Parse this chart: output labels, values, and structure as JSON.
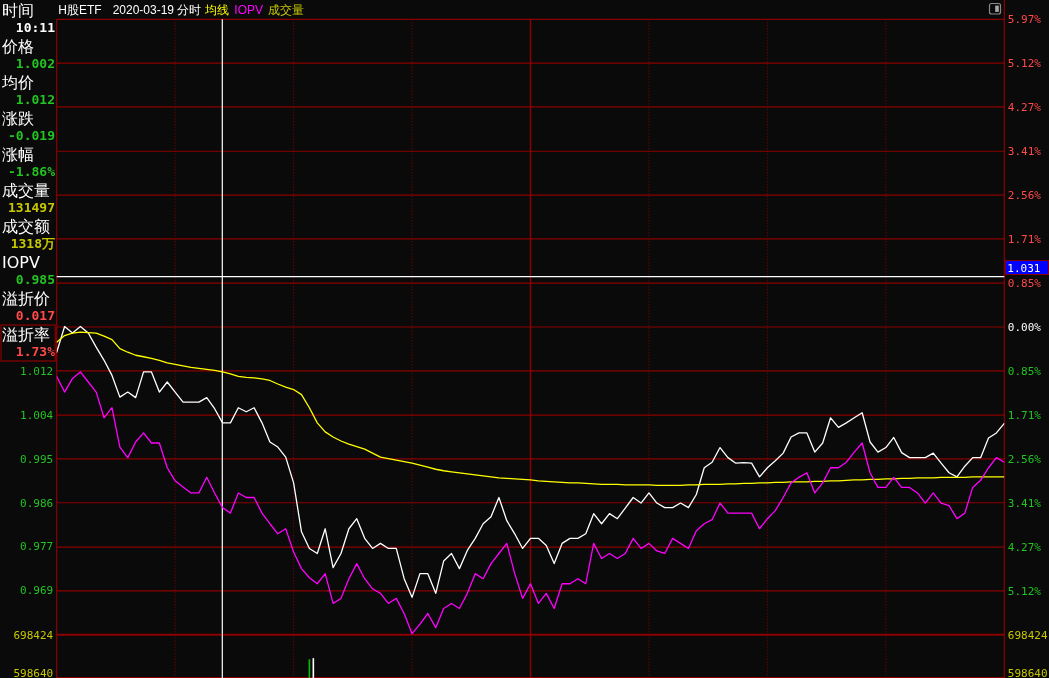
{
  "chart_data": [
    {
      "type": "line",
      "title": "H股ETF",
      "subtitle": "2020-03-19 分时",
      "grid": true,
      "tick_labels": "y",
      "categories": [
        null,
        null,
        null,
        null,
        null,
        null,
        null,
        null,
        null,
        null,
        null,
        null,
        null,
        null,
        null,
        null,
        null,
        null,
        null,
        null,
        null,
        null,
        null,
        null,
        null,
        null,
        null,
        null,
        null,
        null,
        null,
        null,
        null,
        null,
        null,
        null,
        null,
        null,
        null,
        null,
        null,
        null,
        null,
        null,
        null,
        null,
        null,
        null,
        null,
        null,
        null,
        null,
        null,
        null,
        null,
        null,
        null,
        null,
        null,
        null,
        null,
        null,
        null,
        null,
        null,
        null,
        null,
        null,
        null,
        null,
        null,
        null,
        null,
        null,
        null,
        null,
        null,
        null,
        null,
        null,
        null,
        null,
        null,
        null,
        null,
        null,
        null,
        null,
        null,
        null,
        null,
        null,
        null,
        null,
        null,
        null,
        null,
        null,
        null,
        null,
        null,
        null,
        null,
        null,
        null,
        null,
        null,
        null,
        null,
        null,
        null,
        null,
        null,
        null,
        null,
        null,
        null,
        null,
        null,
        null,
        null
      ],
      "ylim": [
        0.96,
        1.082
      ],
      "yticks": [
        {
          "value": 1.0123,
          "label": "1.012"
        },
        {
          "value": 1.0036,
          "label": "1.004"
        },
        {
          "value": 0.9949,
          "label": "0.995"
        },
        {
          "value": 0.9862,
          "label": "0.986"
        },
        {
          "value": 0.9775,
          "label": "0.977"
        },
        {
          "value": 0.9688,
          "label": "0.969"
        }
      ],
      "y2lim": [
        -5.97,
        5.97
      ],
      "y2ticks": [
        {
          "value": 5.97,
          "label": "5.97%"
        },
        {
          "value": 5.12,
          "label": "5.12%"
        },
        {
          "value": 4.27,
          "label": "4.27%"
        },
        {
          "value": 3.41,
          "label": "3.41%"
        },
        {
          "value": 2.56,
          "label": "2.56%"
        },
        {
          "value": 1.71,
          "label": "1.71%"
        },
        {
          "value": 0.85,
          "label": "0.85%"
        },
        {
          "value": 0,
          "label": "0.00%"
        },
        {
          "value": -0.85,
          "label": "0.85%"
        },
        {
          "value": -1.71,
          "label": "1.71%"
        },
        {
          "value": -2.56,
          "label": "2.56%"
        },
        {
          "value": -3.41,
          "label": "3.41%"
        },
        {
          "value": -4.27,
          "label": "4.27%"
        },
        {
          "value": -5.12,
          "label": "5.12%"
        }
      ],
      "ref_lines": [
        {
          "axis": "y",
          "value": 1.031,
          "label": "1.031",
          "color": "#ffffff"
        }
      ],
      "annotations": [
        "时间",
        "10:11",
        "价格",
        "1.002",
        "均价",
        "1.012",
        "涨跌",
        "-0.019",
        "涨幅",
        "-1.86%",
        "成交量",
        "131497",
        "成交额",
        "1318万",
        "IOPV",
        "0.985",
        "溢折价",
        "0.017",
        "溢折率",
        "1.73%"
      ],
      "series": [
        {
          "color": "#ffffff",
          "values": [
            1.016,
            1.0211,
            1.0198,
            1.0211,
            1.0198,
            1.017,
            1.0144,
            1.0114,
            1.0071,
            1.0081,
            1.007,
            1.0121,
            1.0121,
            1.0081,
            1.0101,
            1.0081,
            1.0061,
            1.0061,
            1.0061,
            1.007,
            1.0048,
            1.002,
            1.002,
            1.005,
            1.0042,
            1.005,
            1.002,
            0.9982,
            0.9972,
            0.9952,
            0.9901,
            0.9804,
            0.9771,
            0.9761,
            0.981,
            0.9733,
            0.9761,
            0.981,
            0.983,
            0.9791,
            0.9771,
            0.9781,
            0.9771,
            0.9771,
            0.9711,
            0.9674,
            0.9721,
            0.9721,
            0.9682,
            0.9746,
            0.9761,
            0.9731,
            0.9767,
            0.9791,
            0.982,
            0.9834,
            0.9872,
            0.9826,
            0.98,
            0.9771,
            0.9791,
            0.9791,
            0.9777,
            0.9741,
            0.9781,
            0.9791,
            0.9791,
            0.98,
            0.984,
            0.982,
            0.984,
            0.983,
            0.9851,
            0.9872,
            0.9861,
            0.9881,
            0.9861,
            0.9852,
            0.9852,
            0.9861,
            0.9852,
            0.9878,
            0.9931,
            0.9942,
            0.9971,
            0.9951,
            0.994,
            0.9941,
            0.994,
            0.9913,
            0.9931,
            0.9945,
            0.996,
            0.9992,
            1.0,
            1.0,
            0.9962,
            0.998,
            1.003,
            1.0011,
            1.002,
            1.003,
            1.004,
            0.9982,
            0.9962,
            0.9971,
            0.9991,
            0.9961,
            0.9951,
            0.9951,
            0.9951,
            0.996,
            0.994,
            0.9921,
            0.9913,
            0.9934,
            0.9951,
            0.9951,
            0.999,
            1.0,
            1.0019
          ]
        },
        {
          "name": "均线",
          "color": "#ffff00",
          "values": [
            1.018,
            1.0193,
            1.0198,
            1.02,
            1.0199,
            1.0198,
            1.0192,
            1.0185,
            1.0167,
            1.016,
            1.0154,
            1.0151,
            1.0148,
            1.0144,
            1.0139,
            1.0136,
            1.0133,
            1.013,
            1.0128,
            1.0126,
            1.0124,
            1.0121,
            1.0117,
            1.0112,
            1.011,
            1.0109,
            1.0107,
            1.0104,
            1.0097,
            1.0091,
            1.0086,
            1.0076,
            1.005,
            1.002,
            1.0002,
            0.9992,
            0.9984,
            0.9978,
            0.9973,
            0.9968,
            0.996,
            0.9952,
            0.9949,
            0.9946,
            0.9943,
            0.994,
            0.9936,
            0.9932,
            0.9928,
            0.9925,
            0.9923,
            0.9921,
            0.9919,
            0.9917,
            0.9915,
            0.9913,
            0.9911,
            0.991,
            0.9909,
            0.9908,
            0.9907,
            0.9905,
            0.9904,
            0.9903,
            0.9902,
            0.9901,
            0.9901,
            0.99,
            0.9899,
            0.9898,
            0.9898,
            0.9898,
            0.9897,
            0.9897,
            0.9897,
            0.9897,
            0.9896,
            0.9896,
            0.9896,
            0.9896,
            0.9897,
            0.9897,
            0.9898,
            0.9898,
            0.9898,
            0.9899,
            0.9899,
            0.99,
            0.99,
            0.9901,
            0.9901,
            0.9902,
            0.9902,
            0.9903,
            0.9903,
            0.9903,
            0.9904,
            0.9904,
            0.9905,
            0.9905,
            0.9906,
            0.9907,
            0.9907,
            0.9908,
            0.9908,
            0.9909,
            0.9909,
            0.991,
            0.991,
            0.9911,
            0.9911,
            0.9911,
            0.9912,
            0.9912,
            0.9912,
            0.9912,
            0.9913,
            0.9913,
            0.9913,
            0.9913,
            0.9913
          ]
        },
        {
          "name": "IOPV",
          "color": "#ff00ff",
          "values": [
            1.0112,
            1.0081,
            1.0108,
            1.0121,
            1.0101,
            1.0081,
            1.003,
            1.005,
            0.9972,
            0.9951,
            0.9982,
            1.0,
            0.998,
            0.998,
            0.9931,
            0.9905,
            0.9893,
            0.9881,
            0.9881,
            0.9912,
            0.9881,
            0.9852,
            0.9841,
            0.9881,
            0.9872,
            0.9872,
            0.9841,
            0.982,
            0.98,
            0.981,
            0.9764,
            0.9731,
            0.9713,
            0.9701,
            0.9721,
            0.9662,
            0.9672,
            0.9711,
            0.9741,
            0.9711,
            0.9691,
            0.9682,
            0.9662,
            0.9672,
            0.9642,
            0.9602,
            0.9621,
            0.9642,
            0.9614,
            0.9652,
            0.9662,
            0.9652,
            0.9682,
            0.9721,
            0.9711,
            0.9741,
            0.9761,
            0.9781,
            0.9721,
            0.9672,
            0.9701,
            0.9662,
            0.9682,
            0.9652,
            0.9701,
            0.9701,
            0.9711,
            0.9701,
            0.9781,
            0.9751,
            0.9761,
            0.9751,
            0.9761,
            0.9791,
            0.9771,
            0.9781,
            0.9766,
            0.9761,
            0.9791,
            0.9781,
            0.9771,
            0.9806,
            0.982,
            0.9828,
            0.9861,
            0.9841,
            0.9841,
            0.9841,
            0.9841,
            0.981,
            0.983,
            0.9846,
            0.9872,
            0.9901,
            0.9912,
            0.9921,
            0.9881,
            0.9901,
            0.9931,
            0.9931,
            0.9942,
            0.9962,
            0.998,
            0.9921,
            0.9892,
            0.9892,
            0.9912,
            0.9892,
            0.9892,
            0.9881,
            0.9861,
            0.9881,
            0.9861,
            0.9856,
            0.983,
            0.9841,
            0.9892,
            0.9906,
            0.9931,
            0.9951,
            0.9942
          ]
        }
      ]
    },
    {
      "type": "bar",
      "grid": "x",
      "tick_labels": "y",
      "categories": [
        null,
        null,
        null,
        null,
        null,
        null,
        null,
        null,
        null,
        null,
        null,
        null,
        null,
        null,
        null,
        null,
        null,
        null,
        null,
        null,
        null,
        null,
        null,
        null,
        null,
        null,
        null,
        null,
        null,
        null,
        null,
        null,
        null,
        null,
        null,
        null,
        null,
        null,
        null,
        null,
        null,
        null,
        null,
        null,
        null,
        null,
        null,
        null,
        null,
        null,
        null,
        null,
        null,
        null,
        null,
        null,
        null,
        null,
        null,
        null,
        null,
        null,
        null,
        null,
        null,
        null,
        null,
        null,
        null,
        null,
        null,
        null,
        null,
        null,
        null,
        null,
        null,
        null,
        null,
        null,
        null,
        null,
        null,
        null,
        null,
        null,
        null,
        null,
        null,
        null,
        null,
        null,
        null,
        null,
        null,
        null,
        null,
        null,
        null,
        null,
        null,
        null,
        null,
        null,
        null,
        null,
        null,
        null,
        null,
        null,
        null,
        null,
        null,
        null,
        null,
        null,
        null,
        null,
        null,
        null,
        null,
        null,
        null,
        null,
        null,
        null,
        null,
        null,
        null,
        null,
        null,
        null,
        null,
        null,
        null,
        null,
        null,
        null,
        null,
        null,
        null,
        null,
        null,
        null,
        null,
        null,
        null,
        null,
        null,
        null,
        null,
        null,
        null,
        null,
        null,
        null,
        null,
        null,
        null,
        null,
        null,
        null,
        null,
        null,
        null,
        null,
        null,
        null,
        null,
        null,
        null,
        null,
        null,
        null,
        null,
        null,
        null,
        null,
        null,
        null,
        null,
        null,
        null,
        null,
        null,
        null,
        null,
        null,
        null,
        null,
        null,
        null,
        null,
        null,
        null,
        null,
        null,
        null,
        null,
        null,
        null,
        null,
        null,
        null,
        null,
        null,
        null,
        null,
        null,
        null,
        null,
        null,
        null,
        null,
        null,
        null,
        null,
        null,
        null,
        null,
        null,
        null,
        null,
        null,
        null,
        null,
        null,
        null,
        null,
        null,
        null,
        null,
        null,
        null,
        null,
        null,
        null,
        null,
        null,
        null,
        null
      ],
      "ylim": [
        585000,
        698424
      ],
      "yticks": [
        598640,
        698424
      ],
      "y2lim": [
        585000,
        698424
      ],
      "y2ticks": [
        598640,
        698424
      ],
      "series": [
        {
          "name": "成交量",
          "color": "#c8c800",
          "colors": [
            null,
            null,
            null,
            null,
            null,
            null,
            null,
            null,
            null,
            null,
            null,
            null,
            null,
            null,
            null,
            null,
            null,
            null,
            null,
            null,
            null,
            null,
            null,
            null,
            null,
            null,
            null,
            null,
            null,
            null,
            null,
            null,
            null,
            null,
            null,
            null,
            null,
            null,
            null,
            null,
            null,
            null,
            null,
            null,
            null,
            null,
            null,
            null,
            null,
            null,
            null,
            null,
            null,
            null,
            null,
            null,
            null,
            null,
            null,
            null,
            null,
            null,
            null,
            null,
            "#00c000",
            "#ffffff",
            null,
            null,
            null,
            null,
            null,
            null,
            null,
            null,
            null,
            null,
            null,
            null,
            null,
            null,
            null,
            null,
            null,
            null,
            null,
            null,
            null,
            null,
            null,
            null,
            null,
            null,
            null,
            null,
            null,
            null,
            null,
            null,
            null,
            null,
            null,
            null,
            null,
            null,
            null,
            null,
            null,
            null,
            null,
            null,
            null,
            null,
            null,
            null,
            null,
            null,
            null,
            null,
            null,
            null,
            null,
            null,
            null,
            null,
            null,
            null,
            null,
            null,
            null,
            null,
            null,
            null,
            null,
            null,
            null,
            null,
            null,
            null,
            null,
            null,
            null,
            null,
            null,
            null,
            null,
            null,
            null,
            null,
            null,
            null,
            null,
            null,
            null,
            null,
            null,
            null,
            null,
            null,
            null,
            null,
            null,
            null,
            null,
            null,
            null,
            null,
            null,
            null,
            null,
            null,
            null,
            null,
            null,
            null,
            null,
            null,
            null,
            null,
            null,
            null,
            null,
            null,
            null,
            null,
            null,
            null,
            null,
            null,
            null,
            null,
            null,
            null,
            null,
            null,
            null,
            null,
            null,
            null,
            null,
            null,
            null,
            null,
            null,
            null,
            null,
            null,
            null,
            null,
            null,
            null,
            null,
            null,
            null,
            null,
            null,
            null,
            null,
            null,
            null,
            null,
            null,
            null,
            null,
            null,
            null,
            null,
            null,
            null,
            null,
            null,
            null,
            null,
            null,
            null,
            null,
            null,
            null,
            null,
            null,
            null,
            null
          ],
          "values": [
            null,
            null,
            null,
            null,
            null,
            null,
            null,
            null,
            null,
            null,
            null,
            null,
            null,
            null,
            null,
            null,
            null,
            null,
            null,
            null,
            null,
            null,
            null,
            null,
            null,
            null,
            null,
            null,
            null,
            null,
            null,
            null,
            null,
            null,
            null,
            null,
            null,
            null,
            null,
            null,
            null,
            null,
            null,
            null,
            null,
            null,
            null,
            null,
            null,
            null,
            null,
            null,
            null,
            null,
            null,
            null,
            null,
            null,
            null,
            null,
            null,
            null,
            null,
            null,
            634000,
            637000,
            null,
            null,
            null,
            null,
            null,
            null,
            null,
            null,
            null,
            null,
            null,
            null,
            null,
            null,
            null,
            null,
            null,
            null,
            null,
            null,
            null,
            null,
            null,
            null,
            null,
            null,
            null,
            null,
            null,
            null,
            null,
            null,
            null,
            null,
            null,
            null,
            null,
            null,
            null,
            null,
            null,
            null,
            null,
            null,
            null,
            null,
            null,
            null,
            null,
            null,
            null,
            null,
            null,
            null,
            null,
            null,
            null,
            null,
            null,
            null,
            null,
            null,
            null,
            null,
            null,
            null,
            null,
            null,
            null,
            null,
            null,
            null,
            null,
            null,
            null,
            null,
            null,
            null,
            null,
            null,
            null,
            null,
            null,
            null,
            null,
            null,
            null,
            null,
            null,
            null,
            null,
            null,
            null,
            null,
            null,
            null,
            null,
            null,
            null,
            null,
            null,
            null,
            null,
            null,
            null,
            null,
            null,
            null,
            null,
            null,
            null,
            null,
            null,
            null,
            null,
            null,
            null,
            null,
            null,
            null,
            null,
            null,
            null,
            null,
            null,
            null,
            null,
            null,
            null,
            null,
            null,
            null,
            null,
            null,
            null,
            null,
            null,
            null,
            null,
            null,
            null,
            null,
            null,
            null,
            null,
            null,
            null,
            null,
            null,
            null,
            null,
            null,
            null,
            null,
            null,
            null,
            null,
            null,
            null,
            null,
            null,
            null,
            null,
            null,
            null,
            null,
            null,
            null,
            null,
            null,
            null,
            null,
            null,
            null,
            null
          ]
        }
      ]
    }
  ]
}
